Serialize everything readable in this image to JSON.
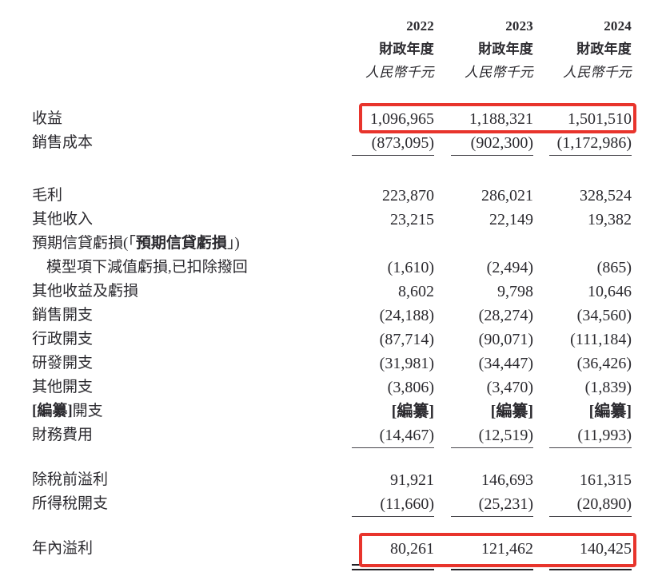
{
  "colors": {
    "text": "#2b2a2f",
    "highlight_red": "#e8342c",
    "rule_black": "#222126",
    "underline_gray": "#47464b"
  },
  "header": {
    "years": [
      "2022",
      "2023",
      "2024"
    ],
    "period_label": "財政年度",
    "unit_label": "人民幣千元"
  },
  "rows": [
    {
      "type": "data",
      "label_parts": [
        {
          "text": "收益"
        }
      ],
      "values": [
        "1,096,965",
        "1,188,321",
        "1,501,510"
      ],
      "highlight": "revenue"
    },
    {
      "type": "data",
      "label_parts": [
        {
          "text": "銷售成本"
        }
      ],
      "values": [
        "(873,095)",
        "(902,300)",
        "(1,172,986)"
      ],
      "underline": true
    },
    {
      "type": "spacer",
      "height": 36
    },
    {
      "type": "data",
      "label_parts": [
        {
          "text": "毛利"
        }
      ],
      "values": [
        "223,870",
        "286,021",
        "328,524"
      ]
    },
    {
      "type": "data",
      "label_parts": [
        {
          "text": "其他收入"
        }
      ],
      "values": [
        "23,215",
        "22,149",
        "19,382"
      ]
    },
    {
      "type": "data",
      "label_parts": [
        {
          "text": "預期信貸虧損(「"
        },
        {
          "text": "預期信貸虧損",
          "bold": true
        },
        {
          "text": "」)"
        }
      ],
      "values": [
        "",
        "",
        ""
      ]
    },
    {
      "type": "data",
      "indent": true,
      "label_parts": [
        {
          "text": "模型項下減值虧損,已扣除撥回"
        }
      ],
      "values": [
        "(1,610)",
        "(2,494)",
        "(865)"
      ]
    },
    {
      "type": "data",
      "label_parts": [
        {
          "text": "其他收益及虧損"
        }
      ],
      "values": [
        "8,602",
        "9,798",
        "10,646"
      ]
    },
    {
      "type": "data",
      "label_parts": [
        {
          "text": "銷售開支"
        }
      ],
      "values": [
        "(24,188)",
        "(28,274)",
        "(34,560)"
      ]
    },
    {
      "type": "data",
      "label_parts": [
        {
          "text": "行政開支"
        }
      ],
      "values": [
        "(87,714)",
        "(90,071)",
        "(111,184)"
      ]
    },
    {
      "type": "data",
      "label_parts": [
        {
          "text": "研發開支"
        }
      ],
      "values": [
        "(31,981)",
        "(34,447)",
        "(36,426)"
      ]
    },
    {
      "type": "data",
      "label_parts": [
        {
          "text": "其他開支"
        }
      ],
      "values": [
        "(3,806)",
        "(3,470)",
        "(1,839)"
      ]
    },
    {
      "type": "data",
      "label_parts": [
        {
          "text": "[編纂]",
          "bold": true
        },
        {
          "text": "開支"
        }
      ],
      "values": [
        "[編纂]",
        "[編纂]",
        "[編纂]"
      ],
      "bold_values": true
    },
    {
      "type": "data",
      "label_parts": [
        {
          "text": "財務費用"
        }
      ],
      "values": [
        "(14,467)",
        "(12,519)",
        "(11,993)"
      ],
      "underline": true
    },
    {
      "type": "spacer",
      "height": 26
    },
    {
      "type": "data",
      "label_parts": [
        {
          "text": "除稅前溢利"
        }
      ],
      "values": [
        "91,921",
        "146,693",
        "161,315"
      ]
    },
    {
      "type": "data",
      "label_parts": [
        {
          "text": "所得稅開支"
        }
      ],
      "values": [
        "(11,660)",
        "(25,231)",
        "(20,890)"
      ],
      "underline": true
    },
    {
      "type": "spacer",
      "height": 26
    },
    {
      "type": "data",
      "label_parts": [
        {
          "text": "年內溢利"
        }
      ],
      "values": [
        "80,261",
        "121,462",
        "140,425"
      ],
      "highlight": "profit",
      "double_rule": true
    }
  ]
}
